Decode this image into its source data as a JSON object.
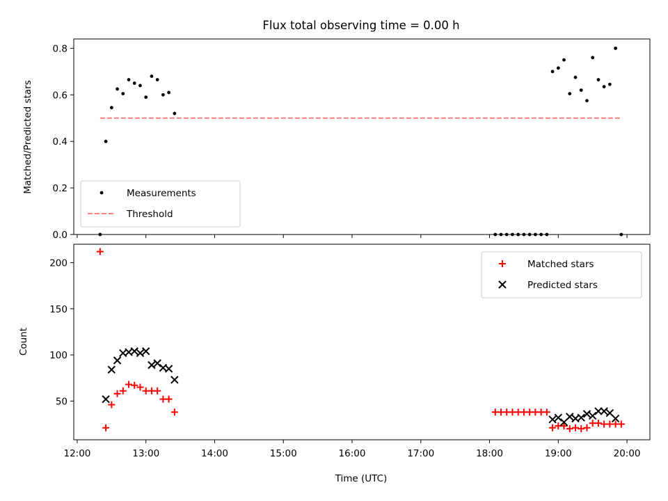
{
  "figure": {
    "title": "Flux total observing time = 0.00 h"
  },
  "chart_data": [
    {
      "type": "scatter",
      "panel": "top",
      "ylabel": "Matched/Predicted stars",
      "xlabel": "",
      "xlim": [
        "11:57",
        "20:20"
      ],
      "ylim": [
        0,
        0.84
      ],
      "yticks": [
        0.0,
        0.2,
        0.4,
        0.6,
        0.8
      ],
      "ytick_labels": [
        "0.0",
        "0.2",
        "0.4",
        "0.6",
        "0.8"
      ],
      "legend_placement": "lower-left",
      "series": [
        {
          "name": "Measurements",
          "kind": "scatter-dot",
          "color": "#000000",
          "points": [
            [
              "12:20",
              0.0
            ],
            [
              "12:25",
              0.4
            ],
            [
              "12:30",
              0.545
            ],
            [
              "12:35",
              0.625
            ],
            [
              "12:40",
              0.605
            ],
            [
              "12:45",
              0.665
            ],
            [
              "12:50",
              0.65
            ],
            [
              "12:55",
              0.64
            ],
            [
              "13:00",
              0.59
            ],
            [
              "13:05",
              0.68
            ],
            [
              "13:10",
              0.665
            ],
            [
              "13:15",
              0.6
            ],
            [
              "13:20",
              0.61
            ],
            [
              "13:25",
              0.52
            ],
            [
              "18:05",
              0.0
            ],
            [
              "18:10",
              0.0
            ],
            [
              "18:15",
              0.0
            ],
            [
              "18:20",
              0.0
            ],
            [
              "18:25",
              0.0
            ],
            [
              "18:30",
              0.0
            ],
            [
              "18:35",
              0.0
            ],
            [
              "18:40",
              0.0
            ],
            [
              "18:45",
              0.0
            ],
            [
              "18:50",
              0.0
            ],
            [
              "18:55",
              0.7
            ],
            [
              "19:00",
              0.715
            ],
            [
              "19:05",
              0.75
            ],
            [
              "19:10",
              0.605
            ],
            [
              "19:15",
              0.675
            ],
            [
              "19:20",
              0.62
            ],
            [
              "19:25",
              0.575
            ],
            [
              "19:30",
              0.76
            ],
            [
              "19:35",
              0.665
            ],
            [
              "19:40",
              0.635
            ],
            [
              "19:45",
              0.645
            ],
            [
              "19:50",
              0.8
            ],
            [
              "19:55",
              0.0
            ]
          ]
        },
        {
          "name": "Threshold",
          "kind": "dashed-line",
          "color": "#ff7f7f",
          "points": [
            [
              "12:20",
              0.5
            ],
            [
              "19:55",
              0.5
            ]
          ]
        }
      ]
    },
    {
      "type": "scatter",
      "panel": "bottom",
      "ylabel": "Count",
      "xlabel": "Time (UTC)",
      "xlim": [
        "11:57",
        "20:20"
      ],
      "ylim": [
        8,
        220
      ],
      "yticks": [
        50,
        100,
        150,
        200
      ],
      "ytick_labels": [
        "50",
        "100",
        "150",
        "200"
      ],
      "xticks": [
        "12:00",
        "13:00",
        "14:00",
        "15:00",
        "16:00",
        "17:00",
        "18:00",
        "19:00",
        "20:00"
      ],
      "xtick_labels": [
        "12:00",
        "13:00",
        "14:00",
        "15:00",
        "16:00",
        "17:00",
        "18:00",
        "19:00",
        "20:00"
      ],
      "legend_placement": "upper-right",
      "series": [
        {
          "name": "Matched stars",
          "kind": "plus",
          "color": "#ff0000",
          "points": [
            [
              "12:20",
              212
            ],
            [
              "12:25",
              21
            ],
            [
              "12:30",
              46
            ],
            [
              "12:35",
              58
            ],
            [
              "12:40",
              61
            ],
            [
              "12:45",
              68
            ],
            [
              "12:50",
              67
            ],
            [
              "12:55",
              65
            ],
            [
              "13:00",
              61
            ],
            [
              "13:05",
              61
            ],
            [
              "13:10",
              61
            ],
            [
              "13:15",
              52
            ],
            [
              "13:20",
              52
            ],
            [
              "13:25",
              38
            ],
            [
              "18:05",
              38
            ],
            [
              "18:10",
              38
            ],
            [
              "18:15",
              38
            ],
            [
              "18:20",
              38
            ],
            [
              "18:25",
              38
            ],
            [
              "18:30",
              38
            ],
            [
              "18:35",
              38
            ],
            [
              "18:40",
              38
            ],
            [
              "18:45",
              38
            ],
            [
              "18:50",
              38
            ],
            [
              "18:55",
              21
            ],
            [
              "19:00",
              23
            ],
            [
              "19:05",
              23
            ],
            [
              "19:10",
              20
            ],
            [
              "19:15",
              21
            ],
            [
              "19:20",
              20
            ],
            [
              "19:25",
              21
            ],
            [
              "19:30",
              26
            ],
            [
              "19:35",
              26
            ],
            [
              "19:40",
              25
            ],
            [
              "19:45",
              25
            ],
            [
              "19:50",
              25
            ],
            [
              "19:55",
              25
            ]
          ]
        },
        {
          "name": "Predicted stars",
          "kind": "x",
          "color": "#000000",
          "points": [
            [
              "12:25",
              52
            ],
            [
              "12:30",
              84
            ],
            [
              "12:35",
              94
            ],
            [
              "12:40",
              102
            ],
            [
              "12:45",
              103
            ],
            [
              "12:50",
              104
            ],
            [
              "12:55",
              102
            ],
            [
              "13:00",
              104
            ],
            [
              "13:05",
              89
            ],
            [
              "13:10",
              91
            ],
            [
              "13:15",
              86
            ],
            [
              "13:20",
              85
            ],
            [
              "13:25",
              73
            ],
            [
              "18:55",
              30
            ],
            [
              "19:00",
              32
            ],
            [
              "19:05",
              27
            ],
            [
              "19:10",
              33
            ],
            [
              "19:15",
              31
            ],
            [
              "19:20",
              32
            ],
            [
              "19:25",
              36
            ],
            [
              "19:30",
              34
            ],
            [
              "19:35",
              39
            ],
            [
              "19:40",
              39
            ],
            [
              "19:45",
              37
            ],
            [
              "19:50",
              31
            ]
          ]
        }
      ]
    }
  ]
}
